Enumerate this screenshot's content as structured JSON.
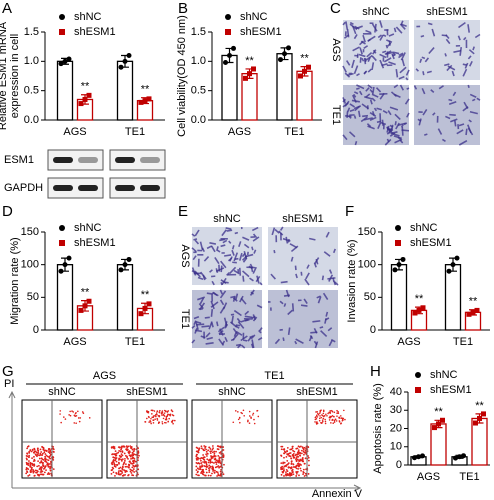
{
  "chart_data": [
    {
      "type": "bar",
      "ylabel": "Relative ESM1 mRNA expression in cell",
      "categories": [
        "AGS",
        "TE1"
      ],
      "ylim": [
        0,
        1.5
      ],
      "yticks": [
        {
          "value": 0,
          "label": "0.0"
        },
        0.5,
        {
          "value": 1,
          "label": "1.0"
        },
        1.5
      ],
      "series": [
        {
          "name": "shNC",
          "color": "#000000",
          "values": [
            1.0,
            1.0
          ],
          "errors": [
            0.05,
            0.1
          ],
          "points": [
            [
              0.96,
              1.0,
              1.04
            ],
            [
              0.9,
              1.0,
              1.1
            ]
          ]
        },
        {
          "name": "shESM1",
          "color": "#c00000",
          "values": [
            0.35,
            0.33
          ],
          "errors": [
            0.08,
            0.05
          ],
          "points": [
            [
              0.28,
              0.35,
              0.42
            ],
            [
              0.3,
              0.33,
              0.36
            ]
          ],
          "sig_labels": [
            "**",
            "**"
          ]
        }
      ]
    },
    {
      "type": "bar",
      "ylabel": "Cell viability(OD 450 nm)",
      "categories": [
        "AGS",
        "TE1"
      ],
      "ylim": [
        0,
        1.5
      ],
      "yticks": [
        {
          "value": 0,
          "label": "0.0"
        },
        0.5,
        {
          "value": 1,
          "label": "1.0"
        },
        1.5
      ],
      "series": [
        {
          "name": "shNC",
          "color": "#000000",
          "values": [
            1.1,
            1.13
          ],
          "errors": [
            0.12,
            0.1
          ],
          "points": [
            [
              0.98,
              1.1,
              1.22
            ],
            [
              1.03,
              1.13,
              1.23
            ]
          ]
        },
        {
          "name": "shESM1",
          "color": "#c00000",
          "values": [
            0.79,
            0.83
          ],
          "errors": [
            0.08,
            0.08
          ],
          "points": [
            [
              0.71,
              0.79,
              0.87
            ],
            [
              0.75,
              0.83,
              0.9
            ]
          ],
          "sig_labels": [
            "**",
            "**"
          ]
        }
      ]
    },
    {
      "type": "bar",
      "ylabel": "Migration rate (%)",
      "categories": [
        "AGS",
        "TE1"
      ],
      "ylim": [
        0,
        150
      ],
      "yticks": [
        0,
        50,
        100,
        150
      ],
      "series": [
        {
          "name": "shNC",
          "color": "#000000",
          "values": [
            100,
            100
          ],
          "errors": [
            10,
            8
          ],
          "points": [
            [
              90,
              100,
              110
            ],
            [
              92,
              100,
              108
            ]
          ]
        },
        {
          "name": "shESM1",
          "color": "#c00000",
          "values": [
            37,
            33
          ],
          "errors": [
            8,
            8
          ],
          "points": [
            [
              30,
              37,
              44
            ],
            [
              25,
              33,
              40
            ]
          ],
          "sig_labels": [
            "**",
            "**"
          ]
        }
      ]
    },
    {
      "type": "bar",
      "ylabel": "Invasion rate (%)",
      "categories": [
        "AGS",
        "TE1"
      ],
      "ylim": [
        0,
        150
      ],
      "yticks": [
        0,
        50,
        100,
        150
      ],
      "series": [
        {
          "name": "shNC",
          "color": "#000000",
          "values": [
            100,
            100
          ],
          "errors": [
            8,
            10
          ],
          "points": [
            [
              92,
              100,
              108
            ],
            [
              90,
              100,
              110
            ]
          ]
        },
        {
          "name": "shESM1",
          "color": "#c00000",
          "values": [
            30,
            27
          ],
          "errors": [
            5,
            4
          ],
          "points": [
            [
              26,
              30,
              34
            ],
            [
              24,
              27,
              30
            ]
          ],
          "sig_labels": [
            "**",
            "**"
          ]
        }
      ]
    },
    {
      "type": "bar",
      "ylabel": "Apoptosis rate (%)",
      "categories": [
        "AGS",
        "TE1"
      ],
      "ylim": [
        0,
        40
      ],
      "yticks": [
        0,
        10,
        20,
        30,
        40
      ],
      "series": [
        {
          "name": "shNC",
          "color": "#000000",
          "values": [
            4.5,
            4.5
          ],
          "errors": [
            0.5,
            0.8
          ],
          "points": [
            [
              4.0,
              4.5,
              5.0
            ],
            [
              3.8,
              4.5,
              5.1
            ]
          ]
        },
        {
          "name": "shESM1",
          "color": "#c00000",
          "values": [
            22.5,
            25.5
          ],
          "errors": [
            2,
            2.5
          ],
          "points": [
            [
              20.5,
              22.5,
              24.5
            ],
            [
              23,
              25.5,
              28
            ]
          ],
          "sig_labels": [
            "**",
            "**"
          ]
        }
      ]
    }
  ],
  "figure": {
    "letters": [
      "A",
      "B",
      "C",
      "D",
      "E",
      "F",
      "G",
      "H"
    ],
    "blot": {
      "rows": [
        "ESM1",
        "GAPDH"
      ]
    },
    "micrograph_c": {
      "columns": [
        "shNC",
        "shESM1"
      ],
      "rows": [
        "AGS",
        "TE1"
      ]
    },
    "micrograph_e": {
      "columns": [
        "shNC",
        "shESM1"
      ],
      "rows": [
        "AGS",
        "TE1"
      ]
    },
    "flow": {
      "groups": [
        "AGS",
        "TE1"
      ],
      "columns": [
        "shNC",
        "shESM1",
        "shNC",
        "shESM1"
      ],
      "y_axis": "PI",
      "x_axis": "Annexin V"
    }
  }
}
